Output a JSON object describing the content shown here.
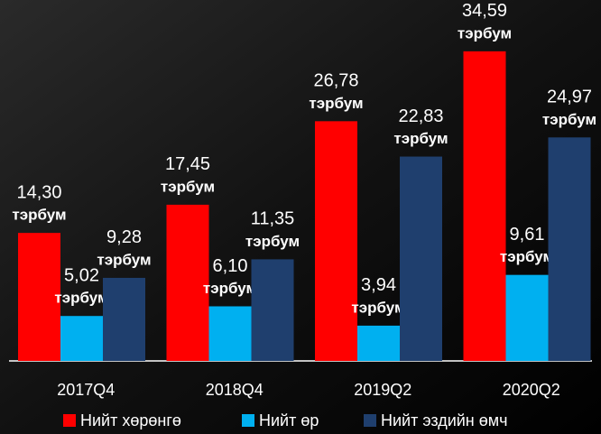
{
  "chart_data": {
    "type": "bar",
    "categories": [
      "2017Q4",
      "2018Q4",
      "2019Q2",
      "2020Q2"
    ],
    "value_unit": "тэрбум",
    "series": [
      {
        "name": "Нийт хөрөнгө",
        "color": "#ff0000",
        "values": [
          14.3,
          17.45,
          26.78,
          34.59
        ],
        "value_labels": [
          "14,30",
          "17,45",
          "26,78",
          "34,59"
        ]
      },
      {
        "name": "Нийт өр",
        "color": "#00b0f0",
        "values": [
          5.02,
          6.1,
          3.94,
          9.61
        ],
        "value_labels": [
          "5,02",
          "6,10",
          "3,94",
          "9,61"
        ]
      },
      {
        "name": "Нийт эздийн өмч",
        "color": "#1f3f6e",
        "values": [
          9.28,
          11.35,
          22.83,
          24.97
        ],
        "value_labels": [
          "9,28",
          "11,35",
          "22,83",
          "24,97"
        ]
      }
    ]
  }
}
